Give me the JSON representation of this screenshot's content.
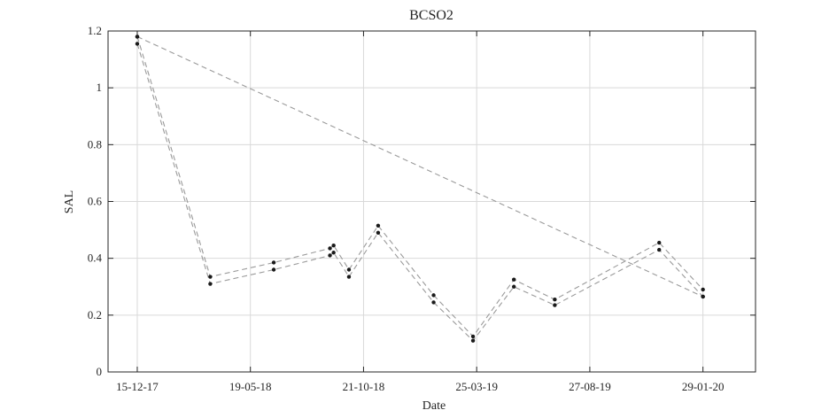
{
  "chart_data": {
    "type": "line",
    "title": "BCSO2",
    "xlabel": "Date",
    "ylabel": "SAL",
    "xlim": [
      "2017-11-05",
      "2020-04-10"
    ],
    "ylim": [
      0,
      1.2
    ],
    "yticks": [
      0,
      0.2,
      0.4,
      0.6,
      0.8,
      1,
      1.2
    ],
    "ytick_labels": [
      "0",
      "0.2",
      "0.4",
      "0.6",
      "0.8",
      "1",
      "1.2"
    ],
    "xticks": [
      "2017-12-15",
      "2018-05-19",
      "2018-10-21",
      "2019-03-25",
      "2019-08-27",
      "2020-01-29"
    ],
    "xtick_labels": [
      "15-12-17",
      "19-05-18",
      "21-10-18",
      "25-03-19",
      "27-08-19",
      "29-01-20"
    ],
    "grid": true,
    "series": [
      {
        "x": [
          "2017-12-15",
          "2018-03-25",
          "2018-06-20",
          "2018-09-05",
          "2018-09-10",
          "2018-10-01",
          "2018-11-10",
          "2019-01-25",
          "2019-03-20",
          "2019-05-15",
          "2019-07-10",
          "2019-11-30",
          "2020-01-29"
        ],
        "values": [
          1.18,
          0.335,
          0.385,
          0.435,
          0.445,
          0.36,
          0.515,
          0.27,
          0.125,
          0.325,
          0.255,
          0.455,
          0.29
        ]
      },
      {
        "x": [
          "2017-12-15",
          "2018-03-25",
          "2018-06-20",
          "2018-09-05",
          "2018-09-10",
          "2018-10-01",
          "2018-11-10",
          "2019-01-25",
          "2019-03-20",
          "2019-05-15",
          "2019-07-10",
          "2019-11-30",
          "2020-01-29"
        ],
        "values": [
          1.155,
          0.31,
          0.36,
          0.41,
          0.42,
          0.335,
          0.49,
          0.245,
          0.11,
          0.3,
          0.235,
          0.43,
          0.265
        ]
      },
      {
        "x": [
          "2017-12-15",
          "2020-01-29"
        ],
        "values": [
          1.18,
          0.265
        ]
      }
    ]
  }
}
